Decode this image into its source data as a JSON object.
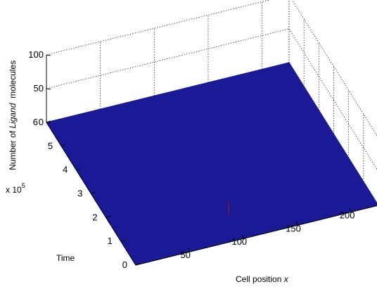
{
  "chart_data": {
    "type": "surface",
    "title": "",
    "xlabel": "Cell position x",
    "xlabel_main": "Cell position ",
    "xlabel_var": "x",
    "ylabel": "Time",
    "ylabel_multiplier": "x 10",
    "ylabel_exponent": "5",
    "zlabel": "Number of Ligand molecules",
    "zlabel_pre": "Number of ",
    "zlabel_em": "Ligand",
    "zlabel_post": "  molecules",
    "x_ticks": [
      "50",
      "100",
      "150",
      "200"
    ],
    "y_ticks": [
      "0",
      "1",
      "2",
      "3",
      "4",
      "5",
      "6"
    ],
    "z_ticks": [
      "0",
      "50",
      "100"
    ],
    "xlim": [
      0,
      225
    ],
    "ylim": [
      0,
      600000
    ],
    "zlim": [
      0,
      100
    ],
    "surface_value": 0,
    "spike": {
      "x": 100,
      "y": 100000,
      "z": 20,
      "note": "small nonzero values near x = 100 at early time"
    },
    "grid": true,
    "surface_color": "#1a1a96",
    "spike_color": "#9a0c2a"
  }
}
